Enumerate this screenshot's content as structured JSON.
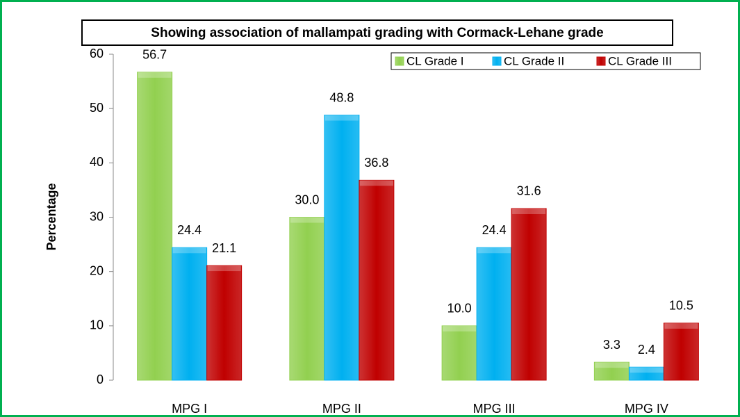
{
  "chart_data": {
    "type": "bar",
    "title": "Showing association of mallampati grading with Cormack-Lehane grade",
    "y_label": "Percentage",
    "categories": [
      "MPG I",
      "MPG II",
      "MPG III",
      "MPG IV"
    ],
    "series": [
      {
        "name": "CL Grade I",
        "color": "#92d050",
        "values": [
          56.7,
          30,
          10,
          3.3
        ],
        "value_labels": [
          "56.7",
          "30.0",
          "10.0",
          "3.3"
        ]
      },
      {
        "name": "CL Grade II",
        "color": "#00b0f0",
        "values": [
          24.4,
          48.8,
          24.4,
          2.4
        ],
        "value_labels": [
          "24.4",
          "48.8",
          "24.4",
          "2.4"
        ]
      },
      {
        "name": "CL Grade III",
        "color": "#c00000",
        "values": [
          21.1,
          36.8,
          31.6,
          10.5
        ],
        "value_labels": [
          "21.1",
          "36.8",
          "31.6",
          "10.5"
        ]
      }
    ],
    "ylim": [
      0,
      60
    ],
    "yticks": [
      0,
      10,
      20,
      30,
      40,
      50,
      60
    ],
    "grid": false,
    "legend": "top-right"
  }
}
